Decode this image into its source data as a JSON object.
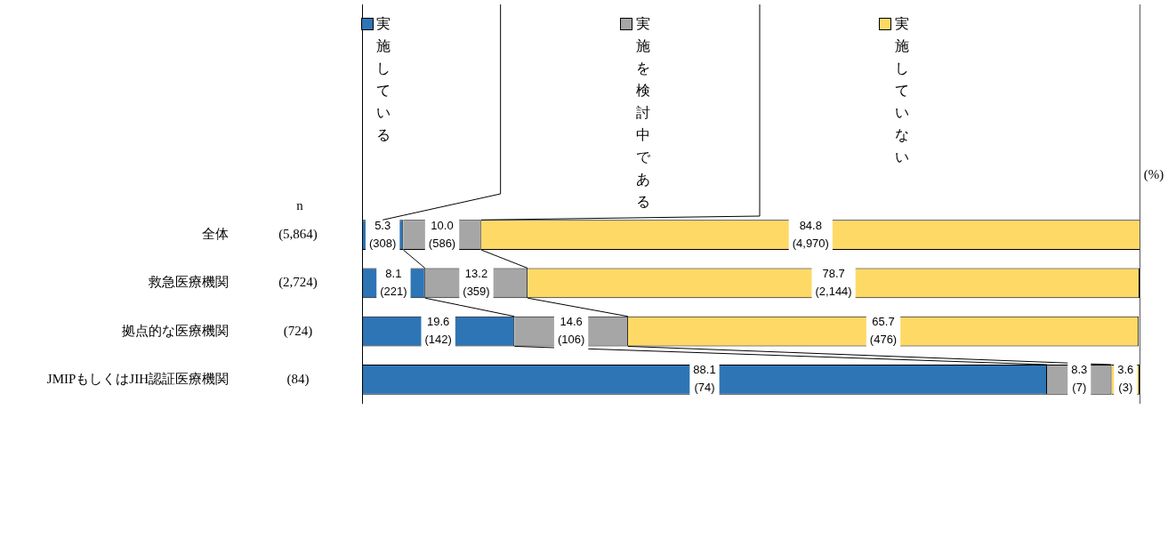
{
  "chart_data": {
    "type": "bar",
    "orientation": "horizontal",
    "stacked": true,
    "legend": "top",
    "tick_labels": "y",
    "categories": [
      "全体",
      "救急医療機関",
      "拠点的な医療機関",
      "JMIPもしくはJIH認証医療機関"
    ],
    "xlim": [
      0,
      100
    ],
    "series": [
      {
        "name": "実施している",
        "color": "#2e75b6",
        "values": [
          5.3,
          8.1,
          19.6,
          88.1
        ],
        "value_labels": [
          "5.3\n(308)",
          "8.1\n(221)",
          "19.6\n(142)",
          "88.1\n(74)"
        ]
      },
      {
        "name": "実施を検討中である",
        "color": "#a6a6a6",
        "values": [
          10.0,
          13.2,
          14.6,
          8.3
        ],
        "value_labels": [
          "10.0\n(586)",
          "13.2\n(359)",
          "14.6\n(106)",
          "8.3\n(7)"
        ]
      },
      {
        "name": "実施していない",
        "color": "#ffd966",
        "values": [
          84.8,
          78.7,
          65.7,
          3.6
        ],
        "value_labels": [
          "84.8\n(4,970)",
          "78.7\n(2,144)",
          "65.7\n(476)",
          "3.6\n(3)"
        ]
      }
    ],
    "annotations": [
      "n",
      "(%)",
      "(5,864)",
      "(2,724)",
      "(724)",
      "(84)"
    ]
  }
}
